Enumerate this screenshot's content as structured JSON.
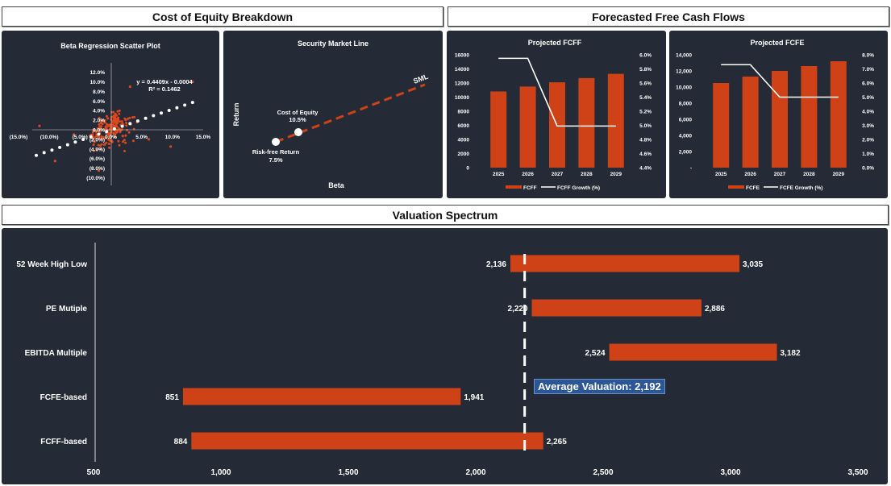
{
  "headers": {
    "cost_of_equity": "Cost of Equity Breakdown",
    "fcf": "Forecasted Free Cash Flows",
    "valuation": "Valuation Spectrum"
  },
  "beta_scatter": {
    "title": "Beta Regression Scatter Plot",
    "equation": "y = 0.4409x - 0.0004",
    "r2": "R² = 0.1462",
    "x_ticks": [
      "(15.0%)",
      "(10.0%)",
      "(5.0%)",
      "0.0%",
      "5.0%",
      "10.0%",
      "15.0%"
    ],
    "y_ticks": [
      "12.0%",
      "10.0%",
      "8.0%",
      "6.0%",
      "4.0%",
      "2.0%",
      "0.0%",
      "(2.0%)",
      "(4.0%)",
      "(6.0%)",
      "(8.0%)",
      "(10.0%)"
    ],
    "trend_slope": 0.4409,
    "trend_intercept": -0.0004,
    "point_color": "#d9481f"
  },
  "sml": {
    "title": "Security Market Line",
    "xlabel": "Beta",
    "ylabel": "Return",
    "line_label": "SML",
    "cost_of_equity_label": "Cost of Equity",
    "cost_of_equity_value": "10.5%",
    "risk_free_label": "Risk-free Return",
    "risk_free_value": "7.5%"
  },
  "chart_data": [
    {
      "type": "bar",
      "title": "Projected FCFF",
      "categories": [
        "2025",
        "2026",
        "2027",
        "2028",
        "2029"
      ],
      "series": [
        {
          "name": "FCFF",
          "values": [
            10800,
            11500,
            12100,
            12700,
            13300
          ]
        },
        {
          "name": "FCFF Growth (%)",
          "values": [
            5.95,
            5.95,
            4.99,
            4.99,
            4.99
          ]
        }
      ],
      "y_ticks": [
        "16000",
        "14000",
        "12000",
        "10000",
        "8000",
        "6000",
        "4000",
        "2000",
        "0"
      ],
      "y2_ticks": [
        "6.0%",
        "5.8%",
        "5.6%",
        "5.4%",
        "5.2%",
        "5.0%",
        "4.8%",
        "4.6%",
        "4.4%"
      ],
      "ylim": [
        0,
        16000
      ],
      "y2lim": [
        4.4,
        6.0
      ],
      "legend": "bottom"
    },
    {
      "type": "bar",
      "title": "Projected FCFE",
      "categories": [
        "2025",
        "2026",
        "2027",
        "2028",
        "2029"
      ],
      "series": [
        {
          "name": "FCFE",
          "values": [
            10500,
            11300,
            12000,
            12600,
            13200
          ]
        },
        {
          "name": "FCFE Growth (%)",
          "values": [
            7.3,
            7.3,
            5.0,
            5.0,
            5.0
          ]
        }
      ],
      "y_ticks": [
        "14,000",
        "12,000",
        "10,000",
        "8,000",
        "6,000",
        "4,000",
        "2,000",
        "-"
      ],
      "y2_ticks": [
        "8.0%",
        "7.0%",
        "6.0%",
        "5.0%",
        "4.0%",
        "3.0%",
        "2.0%",
        "1.0%",
        "0.0%"
      ],
      "ylim": [
        0,
        14000
      ],
      "y2lim": [
        0,
        8
      ],
      "legend": "bottom"
    },
    {
      "type": "bar",
      "orientation": "horizontal-range",
      "title": "Valuation Spectrum",
      "categories": [
        "52 Week High Low",
        "PE Mutiple",
        "EBITDA Multiple",
        "FCFE-based",
        "FCFF-based"
      ],
      "low": [
        2136,
        2220,
        2524,
        851,
        884
      ],
      "high": [
        3035,
        2886,
        3182,
        1941,
        2265
      ],
      "low_labels": [
        "2,136",
        "2,220",
        "2,524",
        "851",
        "884"
      ],
      "high_labels": [
        "3,035",
        "2,886",
        "3,182",
        "1,941",
        "2,265"
      ],
      "x_ticks": [
        "500",
        "1,000",
        "1,500",
        "2,000",
        "2,500",
        "3,000",
        "3,500"
      ],
      "xlim": [
        500,
        3500
      ],
      "average": 2192,
      "average_label": "Average Valuation: 2,192"
    }
  ],
  "colors": {
    "panel_bg": "#242b36",
    "bar": "#cf4117",
    "line": "#ffffff",
    "avg_box": "#2b5797"
  }
}
